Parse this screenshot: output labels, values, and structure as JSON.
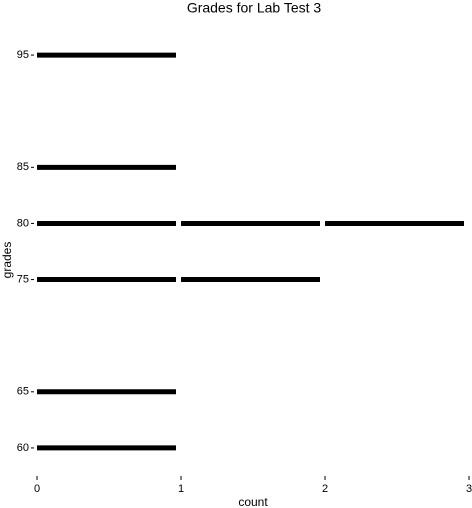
{
  "chart_data": {
    "type": "bar",
    "orientation": "horizontal",
    "title": "Grades for Lab Test 3",
    "x_label": "count",
    "y_label": "grades",
    "y": [
      95,
      85,
      80,
      75,
      65,
      60
    ],
    "values": [
      1,
      1,
      3,
      2,
      1,
      1
    ],
    "color": "#000000",
    "xlim": [
      0,
      3
    ],
    "xticks": [
      0,
      1,
      2,
      3
    ],
    "ylim": [
      57,
      98
    ],
    "yticks": [
      60,
      65,
      75,
      80,
      85,
      95
    ]
  }
}
